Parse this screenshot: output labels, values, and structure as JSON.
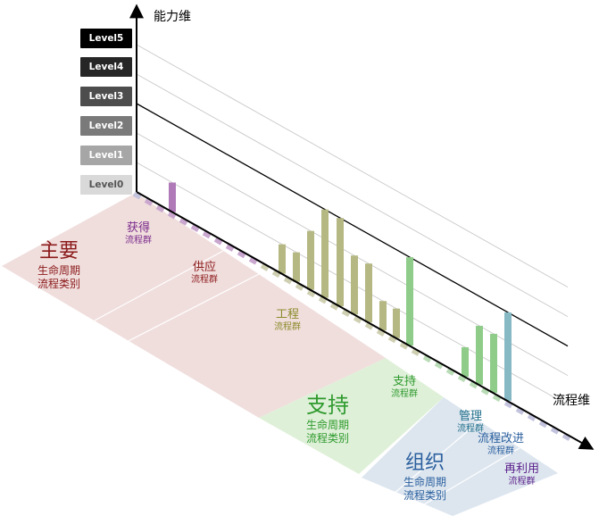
{
  "axes": {
    "y_label": "能力维",
    "x_label": "流程维"
  },
  "levels": [
    {
      "label": "Level5",
      "color": "#000000"
    },
    {
      "label": "Level4",
      "color": "#262626"
    },
    {
      "label": "Level3",
      "color": "#4d4d4d"
    },
    {
      "label": "Level2",
      "color": "#7a7a7a"
    },
    {
      "label": "Level1",
      "color": "#a6a6a6"
    },
    {
      "label": "Level0",
      "color": "#d9d9d9"
    }
  ],
  "categories": [
    {
      "title": "主要",
      "line2": "生命周期",
      "line3": "流程类别",
      "color": "#8b1a1a",
      "panel_color": "#f0dedd"
    },
    {
      "title": "支持",
      "line2": "生命周期",
      "line3": "流程类别",
      "color": "#2e9a2e",
      "panel_color": "#dff0d8"
    },
    {
      "title": "组织",
      "line2": "生命周期",
      "line3": "流程类别",
      "color": "#2a5f9e",
      "panel_color": "#dde6ef"
    }
  ],
  "groups": [
    {
      "name": "获得",
      "sub": "流程群",
      "color": "#7a2a8a"
    },
    {
      "name": "供应",
      "sub": "流程群",
      "color": "#8b1a1a"
    },
    {
      "name": "工程",
      "sub": "流程群",
      "color": "#8a8a2a"
    },
    {
      "name": "支持",
      "sub": "流程群",
      "color": "#2e9a2e"
    },
    {
      "name": "管理",
      "sub": "流程群",
      "color": "#1f6e8a"
    },
    {
      "name": "流程改进",
      "sub": "流程群",
      "color": "#2a5f9e"
    },
    {
      "name": "再利用",
      "sub": "流程群",
      "color": "#5a1f8a"
    }
  ],
  "chart_data": {
    "type": "bar",
    "levels": [
      "Level0",
      "Level1",
      "Level2",
      "Level3",
      "Level4",
      "Level5"
    ],
    "series": [
      {
        "group": "获得",
        "color": "#b07ab8",
        "values": [
          1
        ]
      },
      {
        "group": "工程",
        "color": "#b5b883",
        "values": [
          1,
          1,
          2,
          3,
          3,
          2,
          2,
          1,
          1
        ]
      },
      {
        "group": "支持",
        "color": "#8fcc8a",
        "values": [
          3
        ]
      },
      {
        "group": "管理/流程改进",
        "color": "#8fcc8a",
        "values": [
          1,
          2,
          2
        ]
      },
      {
        "group": "再利用",
        "color": "#86b9c4",
        "values": [
          3
        ]
      }
    ]
  }
}
